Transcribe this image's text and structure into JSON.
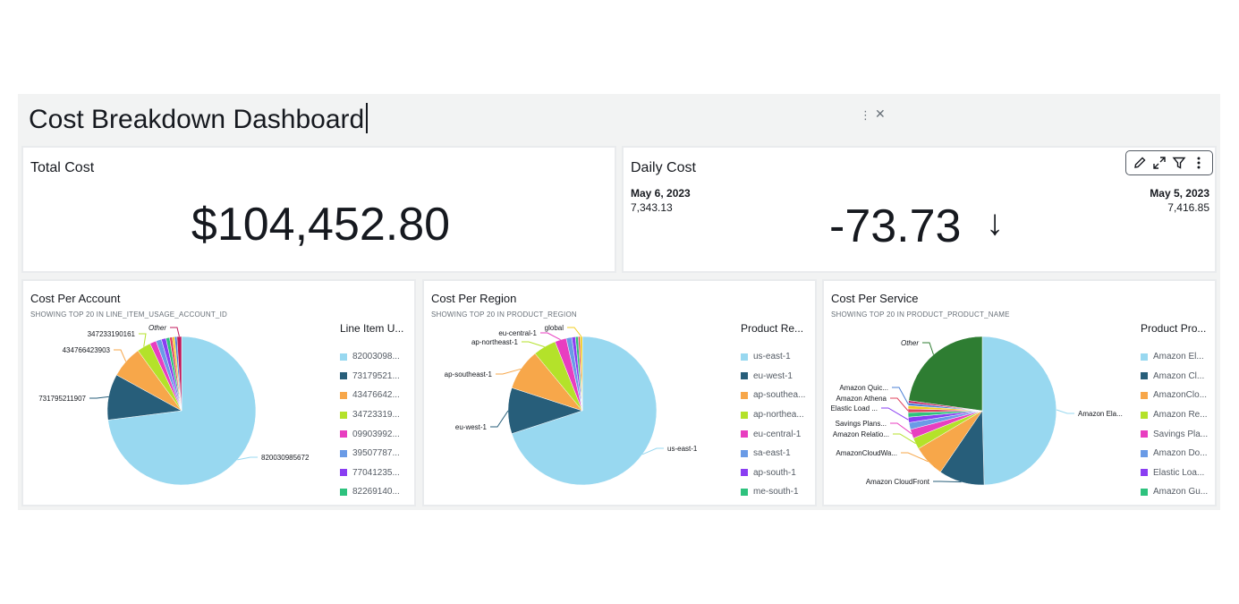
{
  "dashboard": {
    "title": "Cost Breakdown Dashboard",
    "more_icon": "vertical-dots-icon",
    "close_icon": "close-icon"
  },
  "total_cost": {
    "title": "Total Cost",
    "value": "$104,452.80"
  },
  "daily_cost": {
    "title": "Daily Cost",
    "previous_date": "May 6, 2023",
    "previous_value": "7,343.13",
    "current_date": "May 5, 2023",
    "current_value": "7,416.85",
    "delta": "-73.73",
    "delta_direction": "down",
    "toolbar": [
      "edit-icon",
      "expand-icon",
      "filter-icon",
      "more-icon"
    ]
  },
  "colors": [
    "#98d8f0",
    "#275e7a",
    "#f7a74a",
    "#b4e22a",
    "#e83ec0",
    "#6a9be6",
    "#8a3ef2",
    "#2ec27e",
    "#e0435e",
    "#f2cc1e",
    "#4a7fd6",
    "#c2185b",
    "#2e7d32",
    "#f57c00",
    "#7b1fa2"
  ],
  "chart_data": [
    {
      "type": "pie",
      "title": "Cost Per Account",
      "subtitle": "SHOWING TOP 20 IN LINE_ITEM_USAGE_ACCOUNT_ID",
      "legend_title": "Line Item U...",
      "legend": [
        "82003098...",
        "73179521...",
        "43476642...",
        "34723319...",
        "09903992...",
        "39507787...",
        "77041235...",
        "82269140..."
      ],
      "slices": [
        {
          "label": "820030985672",
          "value": 73
        },
        {
          "label": "731795211907",
          "value": 10
        },
        {
          "label": "434766423903",
          "value": 7
        },
        {
          "label": "347233190161",
          "value": 3
        },
        {
          "label": "",
          "value": 1.4
        },
        {
          "label": "",
          "value": 1.2
        },
        {
          "label": "",
          "value": 1.0
        },
        {
          "label": "",
          "value": 0.8
        },
        {
          "label": "",
          "value": 0.6
        },
        {
          "label": "",
          "value": 0.5
        },
        {
          "label": "",
          "value": 0.5
        },
        {
          "label": "Other",
          "value": 1.0
        }
      ]
    },
    {
      "type": "pie",
      "title": "Cost Per Region",
      "subtitle": "SHOWING TOP 20 IN PRODUCT_REGION",
      "legend_title": "Product Re...",
      "legend": [
        "us-east-1",
        "eu-west-1",
        "ap-southea...",
        "ap-northea...",
        "eu-central-1",
        "sa-east-1",
        "ap-south-1",
        "me-south-1"
      ],
      "slices": [
        {
          "label": "us-east-1",
          "value": 70
        },
        {
          "label": "eu-west-1",
          "value": 10
        },
        {
          "label": "ap-southeast-1",
          "value": 9
        },
        {
          "label": "ap-northeast-1",
          "value": 5
        },
        {
          "label": "eu-central-1",
          "value": 2.5
        },
        {
          "label": "",
          "value": 1.2
        },
        {
          "label": "",
          "value": 0.8
        },
        {
          "label": "",
          "value": 0.6
        },
        {
          "label": "",
          "value": 0.4
        },
        {
          "label": "global",
          "value": 0.5
        }
      ]
    },
    {
      "type": "pie",
      "title": "Cost Per Service",
      "subtitle": "SHOWING TOP 20 IN PRODUCT_PRODUCT_NAME",
      "legend_title": "Product Pro...",
      "legend": [
        "Amazon El...",
        "Amazon Cl...",
        "AmazonClo...",
        "Amazon Re...",
        "Savings Pla...",
        "Amazon Do...",
        "Elastic Loa...",
        "Amazon Gu..."
      ],
      "slices": [
        {
          "label": "Amazon Ela...",
          "value": 50
        },
        {
          "label": "Amazon CloudFront",
          "value": 10
        },
        {
          "label": "AmazonCloudWa...",
          "value": 7
        },
        {
          "label": "Amazon Relatio...",
          "value": 2.5
        },
        {
          "label": "Savings Plans...",
          "value": 2
        },
        {
          "label": "",
          "value": 1.5
        },
        {
          "label": "Elastic Load ...",
          "value": 1.2
        },
        {
          "label": "",
          "value": 1
        },
        {
          "label": "Amazon Athena",
          "value": 0.8
        },
        {
          "label": "",
          "value": 0.7
        },
        {
          "label": "Amazon Quic...",
          "value": 0.6
        },
        {
          "label": "",
          "value": 0.5
        },
        {
          "label": "Other",
          "value": 23
        }
      ]
    }
  ]
}
